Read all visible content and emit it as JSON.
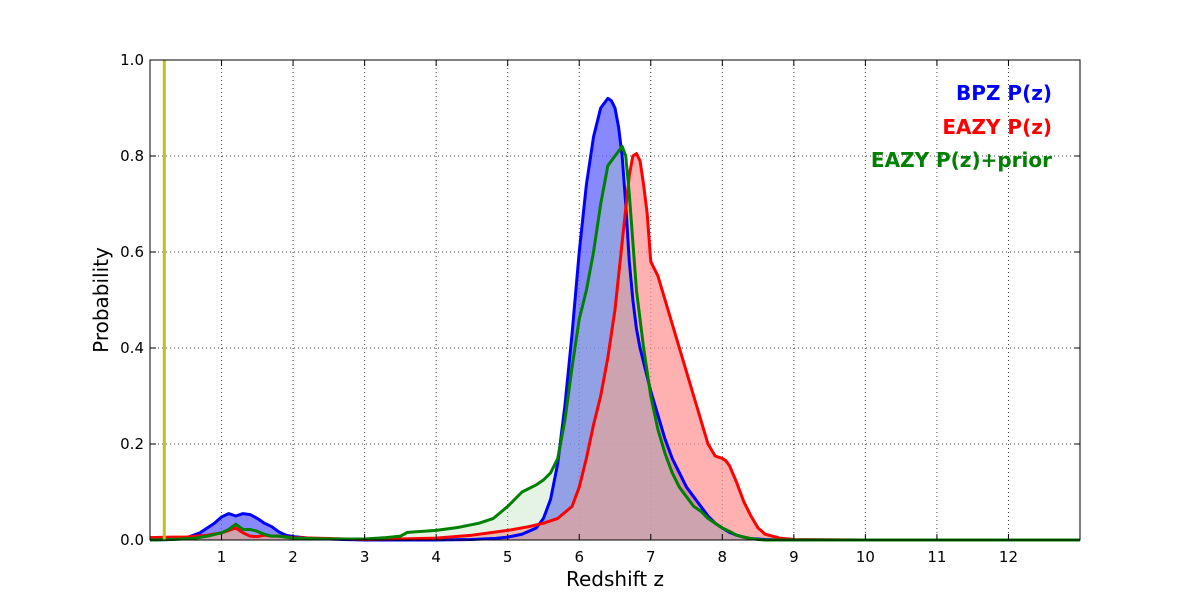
{
  "chart_data": {
    "type": "area",
    "title": "",
    "xlabel": "Redshift z",
    "ylabel": "Probability",
    "xlim": [
      0,
      13
    ],
    "ylim": [
      0,
      1.0
    ],
    "xticks": [
      1,
      2,
      3,
      4,
      5,
      6,
      7,
      8,
      9,
      10,
      11,
      12
    ],
    "xtick_labels": [
      "1",
      "2",
      "3",
      "4",
      "5",
      "6",
      "7",
      "8",
      "9",
      "10",
      "11",
      "12"
    ],
    "yticks": [
      0,
      0.2,
      0.4,
      0.6,
      0.8,
      1.0
    ],
    "ytick_labels": [
      "0.0",
      "0.2",
      "0.4",
      "0.6",
      "0.8",
      "1.0"
    ],
    "grid": true,
    "legend_position": "top-right",
    "vertical_line": {
      "x": 0.2,
      "color": "#c0c020"
    },
    "series": [
      {
        "name": "BPZ P(z)",
        "color": "#0000ff",
        "fill_color": "#6060ff",
        "fill_opacity": 0.75,
        "x": [
          0,
          0.3,
          0.5,
          0.7,
          0.9,
          1.0,
          1.1,
          1.2,
          1.3,
          1.4,
          1.5,
          1.6,
          1.7,
          1.8,
          1.9,
          2.0,
          2.3,
          2.7,
          3.0,
          3.5,
          4.0,
          4.5,
          4.8,
          5.0,
          5.2,
          5.4,
          5.5,
          5.6,
          5.7,
          5.8,
          5.9,
          6.0,
          6.1,
          6.2,
          6.3,
          6.4,
          6.45,
          6.5,
          6.55,
          6.6,
          6.65,
          6.7,
          6.75,
          6.8,
          6.85,
          6.9,
          7.0,
          7.1,
          7.2,
          7.3,
          7.4,
          7.5,
          7.6,
          7.7,
          7.8,
          7.9,
          8.0,
          8.1,
          8.2,
          8.3,
          8.4,
          8.5,
          8.6,
          8.8,
          9.0,
          10.0,
          11.0,
          12.0,
          13.0
        ],
        "values": [
          0.0,
          0.001,
          0.004,
          0.015,
          0.035,
          0.048,
          0.055,
          0.05,
          0.055,
          0.053,
          0.045,
          0.035,
          0.028,
          0.017,
          0.01,
          0.007,
          0.003,
          0.001,
          0.0,
          0.0,
          0.0,
          0.001,
          0.003,
          0.006,
          0.012,
          0.025,
          0.045,
          0.085,
          0.16,
          0.28,
          0.43,
          0.6,
          0.74,
          0.84,
          0.9,
          0.92,
          0.915,
          0.9,
          0.86,
          0.8,
          0.7,
          0.58,
          0.5,
          0.44,
          0.4,
          0.37,
          0.31,
          0.26,
          0.21,
          0.17,
          0.14,
          0.11,
          0.09,
          0.07,
          0.05,
          0.035,
          0.025,
          0.016,
          0.01,
          0.006,
          0.003,
          0.002,
          0.001,
          0.0,
          0.0,
          0.0,
          0.0,
          0.0,
          0.0
        ]
      },
      {
        "name": "EAZY P(z)",
        "color": "#ff0000",
        "fill_color": "#ff9090",
        "fill_opacity": 0.7,
        "x": [
          0,
          0.3,
          0.5,
          0.8,
          1.0,
          1.1,
          1.2,
          1.3,
          1.4,
          1.5,
          1.6,
          1.7,
          1.8,
          2.0,
          2.5,
          3.0,
          3.5,
          4.0,
          4.5,
          5.0,
          5.3,
          5.5,
          5.7,
          5.9,
          6.0,
          6.1,
          6.2,
          6.3,
          6.4,
          6.5,
          6.6,
          6.7,
          6.75,
          6.8,
          6.85,
          6.9,
          6.95,
          7.0,
          7.1,
          7.2,
          7.3,
          7.4,
          7.5,
          7.6,
          7.7,
          7.8,
          7.9,
          8.0,
          8.05,
          8.1,
          8.2,
          8.3,
          8.4,
          8.5,
          8.6,
          8.8,
          9.0,
          10.0,
          11.0,
          12.0,
          13.0
        ],
        "values": [
          0.005,
          0.006,
          0.006,
          0.01,
          0.015,
          0.02,
          0.025,
          0.015,
          0.008,
          0.007,
          0.01,
          0.008,
          0.008,
          0.005,
          0.003,
          0.001,
          0.002,
          0.004,
          0.01,
          0.02,
          0.028,
          0.035,
          0.045,
          0.07,
          0.11,
          0.17,
          0.24,
          0.3,
          0.38,
          0.48,
          0.62,
          0.76,
          0.8,
          0.805,
          0.79,
          0.74,
          0.68,
          0.58,
          0.55,
          0.5,
          0.45,
          0.4,
          0.35,
          0.3,
          0.25,
          0.2,
          0.175,
          0.17,
          0.165,
          0.155,
          0.12,
          0.08,
          0.05,
          0.025,
          0.012,
          0.004,
          0.001,
          0.0,
          0.0,
          0.0,
          0.0
        ]
      },
      {
        "name": "EAZY P(z)+prior",
        "color": "#008000",
        "fill_color": "#a8d8a8",
        "fill_opacity": 0.3,
        "x": [
          0,
          0.3,
          0.6,
          0.8,
          1.0,
          1.1,
          1.2,
          1.3,
          1.4,
          1.5,
          1.6,
          1.7,
          1.8,
          2.0,
          2.5,
          3.0,
          3.3,
          3.5,
          3.6,
          4.0,
          4.3,
          4.6,
          4.8,
          5.0,
          5.2,
          5.4,
          5.5,
          5.6,
          5.7,
          5.8,
          5.9,
          6.0,
          6.1,
          6.2,
          6.3,
          6.4,
          6.5,
          6.6,
          6.65,
          6.7,
          6.75,
          6.8,
          6.9,
          7.0,
          7.1,
          7.2,
          7.3,
          7.4,
          7.5,
          7.6,
          7.7,
          7.8,
          7.9,
          8.0,
          8.1,
          8.2,
          8.3,
          8.4,
          8.5,
          8.6,
          8.8,
          9.0,
          10.0,
          11.0,
          12.0,
          13.0
        ],
        "values": [
          0.0,
          0.001,
          0.003,
          0.008,
          0.015,
          0.022,
          0.033,
          0.022,
          0.022,
          0.018,
          0.012,
          0.008,
          0.008,
          0.004,
          0.002,
          0.002,
          0.005,
          0.008,
          0.016,
          0.02,
          0.026,
          0.035,
          0.045,
          0.07,
          0.1,
          0.115,
          0.125,
          0.14,
          0.17,
          0.25,
          0.36,
          0.46,
          0.52,
          0.6,
          0.7,
          0.78,
          0.8,
          0.82,
          0.8,
          0.72,
          0.62,
          0.52,
          0.4,
          0.3,
          0.23,
          0.18,
          0.14,
          0.11,
          0.09,
          0.07,
          0.06,
          0.045,
          0.035,
          0.025,
          0.018,
          0.01,
          0.006,
          0.003,
          0.001,
          0.0,
          0.0,
          0.0,
          0.0,
          0.0,
          0.0,
          0.0
        ]
      }
    ]
  }
}
